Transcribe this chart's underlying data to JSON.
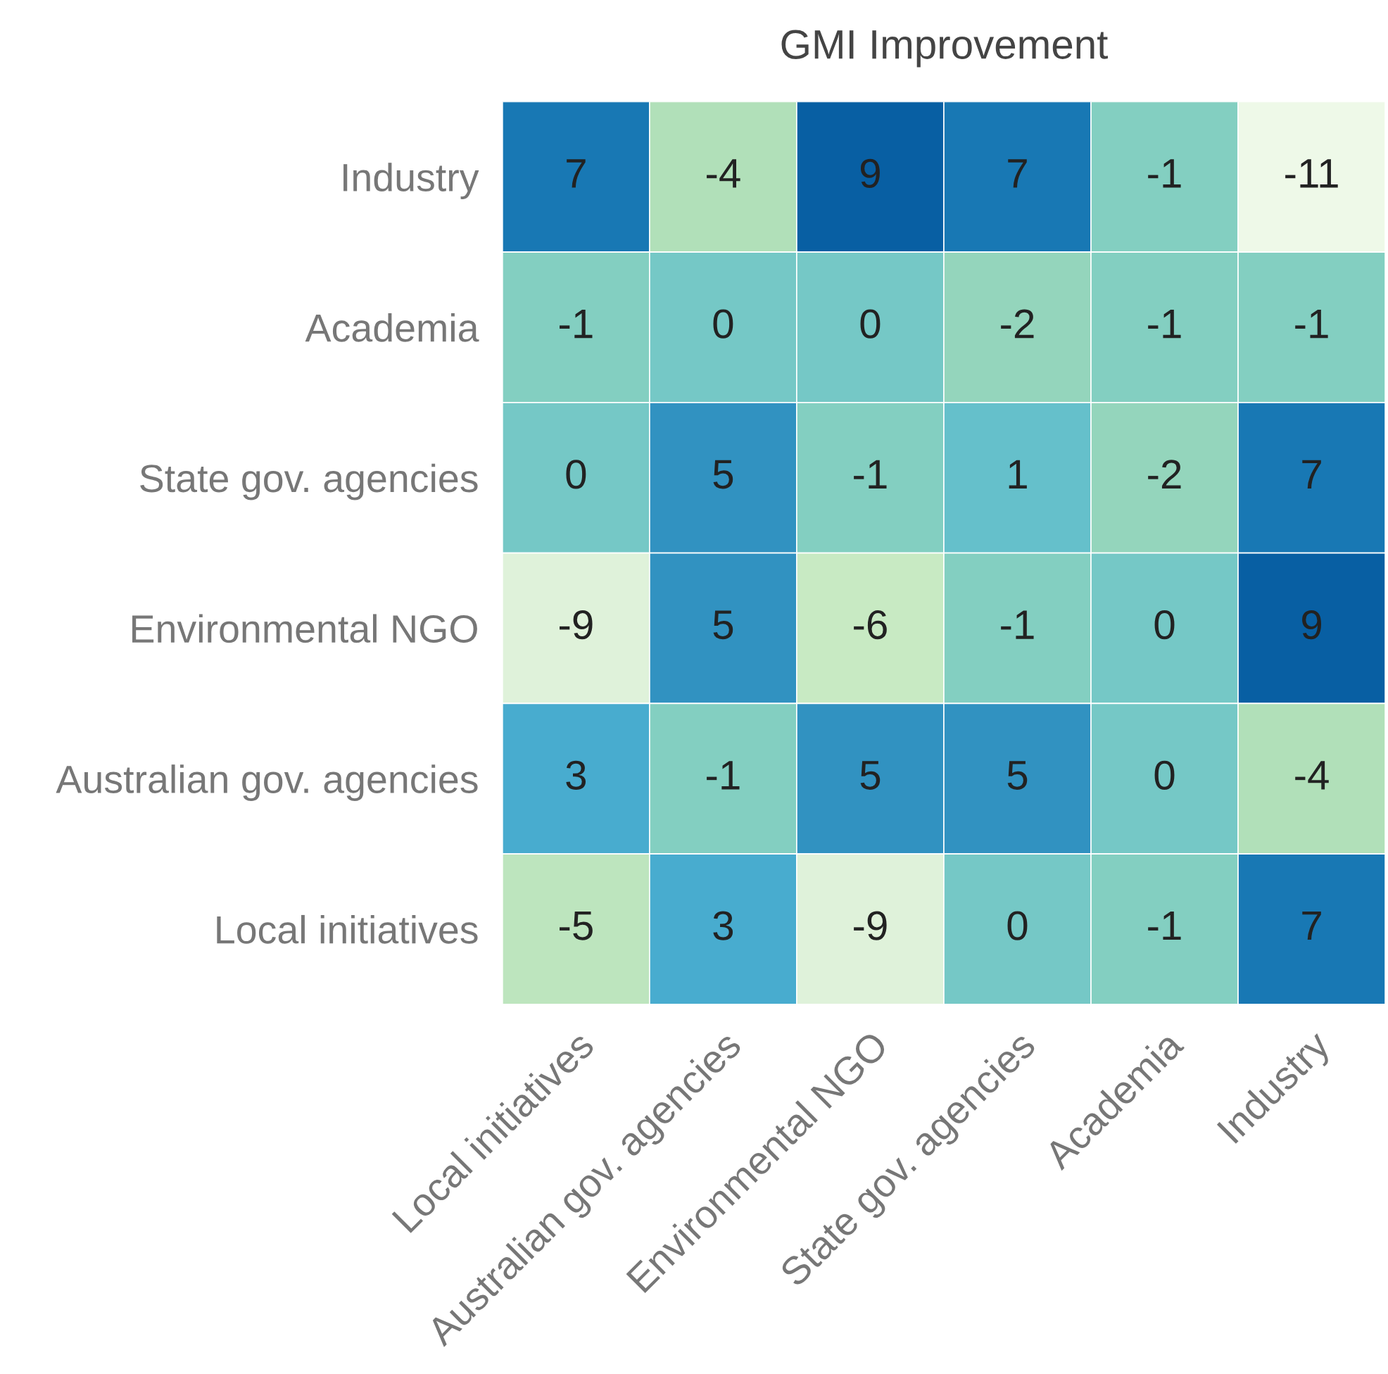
{
  "chart_data": {
    "type": "heatmap",
    "title": "GMI Improvement",
    "categories": [
      "Local initiatives",
      "Australian gov. agencies",
      "Environmental NGO",
      "State gov. agencies",
      "Academia",
      "Industry"
    ],
    "y_categories": [
      "Industry",
      "Academia",
      "State gov. agencies",
      "Environmental NGO",
      "Australian gov. agencies",
      "Local initiatives"
    ],
    "cells": [
      [
        7,
        -4,
        9,
        7,
        -1,
        -11
      ],
      [
        -1,
        0,
        0,
        -2,
        -1,
        -1
      ],
      [
        0,
        5,
        -1,
        1,
        -2,
        7
      ],
      [
        -9,
        5,
        -6,
        -1,
        0,
        9
      ],
      [
        3,
        -1,
        5,
        5,
        0,
        -4
      ],
      [
        -5,
        3,
        -9,
        0,
        -1,
        7
      ]
    ],
    "data_labels": true,
    "grid": false,
    "legend": false
  }
}
